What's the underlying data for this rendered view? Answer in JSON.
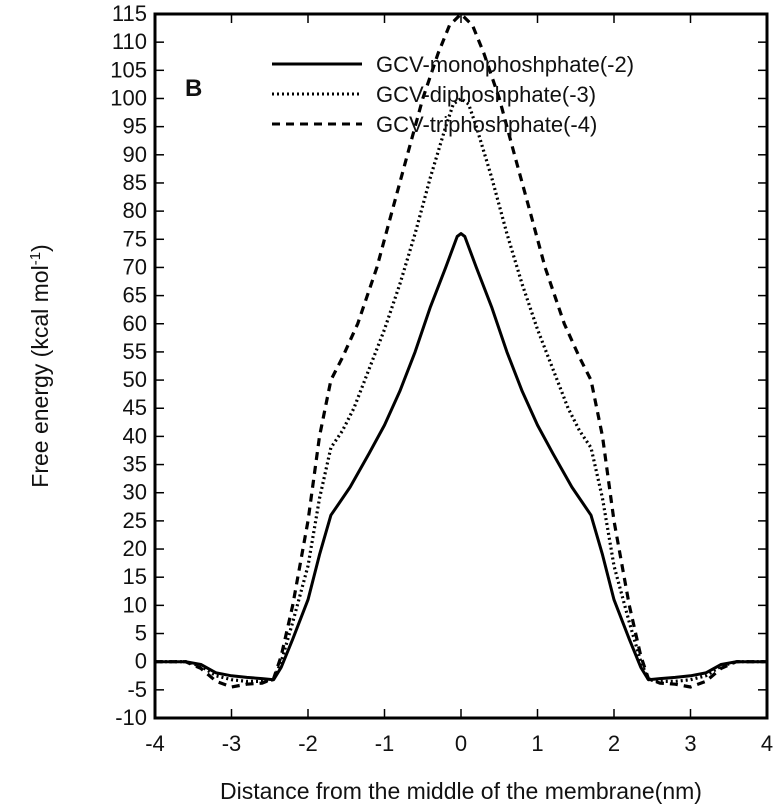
{
  "chart_data": {
    "type": "line",
    "panel_label": "B",
    "xlabel": "Distance from the middle of the membrane(nm)",
    "ylabel_main": "Free energy  (kcal mol",
    "ylabel_sup": "-1",
    "ylabel_end": ")",
    "xlim": [
      -4,
      4
    ],
    "ylim": [
      -10,
      115
    ],
    "xticks": [
      -4,
      -3,
      -2,
      -1,
      0,
      1,
      2,
      3,
      4
    ],
    "yticks": [
      -10,
      -5,
      0,
      5,
      10,
      15,
      20,
      25,
      30,
      35,
      40,
      45,
      50,
      55,
      60,
      65,
      70,
      75,
      80,
      85,
      90,
      95,
      100,
      105,
      110,
      115
    ],
    "grid": false,
    "legend_position": "top-right",
    "series": [
      {
        "name": "GCV-monophoshphate(-2)",
        "style": "solid",
        "color": "#000000",
        "x": [
          -4.0,
          -3.6,
          -3.4,
          -3.2,
          -3.0,
          -2.8,
          -2.6,
          -2.45,
          -2.35,
          -2.2,
          -2.0,
          -1.85,
          -1.7,
          -1.6,
          -1.45,
          -1.2,
          -1.0,
          -0.8,
          -0.6,
          -0.4,
          -0.2,
          -0.05,
          0.0,
          0.05,
          0.2,
          0.4,
          0.6,
          0.8,
          1.0,
          1.2,
          1.45,
          1.6,
          1.7,
          1.85,
          2.0,
          2.2,
          2.35,
          2.45,
          2.6,
          2.8,
          3.0,
          3.2,
          3.4,
          3.6,
          4.0
        ],
        "y": [
          0.0,
          0.0,
          -0.5,
          -2.0,
          -2.5,
          -2.8,
          -3.0,
          -3.2,
          -1.0,
          4.0,
          11.0,
          19.0,
          26.0,
          28.0,
          31.0,
          37.0,
          42.0,
          48.0,
          55.0,
          63.0,
          70.0,
          75.5,
          76.0,
          75.5,
          70.0,
          63.0,
          55.0,
          48.0,
          42.0,
          37.0,
          31.0,
          28.0,
          26.0,
          19.0,
          11.0,
          4.0,
          -1.0,
          -3.2,
          -3.0,
          -2.8,
          -2.5,
          -2.0,
          -0.5,
          0.0,
          0.0
        ]
      },
      {
        "name": "GCV-diphoshphate(-3)",
        "style": "dotted",
        "color": "#000000",
        "x": [
          -4.0,
          -3.6,
          -3.4,
          -3.2,
          -3.0,
          -2.8,
          -2.6,
          -2.45,
          -2.35,
          -2.2,
          -2.0,
          -1.85,
          -1.7,
          -1.55,
          -1.4,
          -1.2,
          -1.0,
          -0.8,
          -0.6,
          -0.4,
          -0.2,
          -0.1,
          0.0,
          0.1,
          0.2,
          0.4,
          0.6,
          0.8,
          1.0,
          1.2,
          1.4,
          1.55,
          1.7,
          1.85,
          2.0,
          2.2,
          2.35,
          2.45,
          2.6,
          2.8,
          3.0,
          3.2,
          3.4,
          3.6,
          4.0
        ],
        "y": [
          0.0,
          0.0,
          -0.8,
          -2.5,
          -3.2,
          -3.5,
          -3.5,
          -3.2,
          0.0,
          7.0,
          17.0,
          29.0,
          38.0,
          41.0,
          45.0,
          52.0,
          59.0,
          67.0,
          76.0,
          86.0,
          95.0,
          99.0,
          100.0,
          99.0,
          95.0,
          86.0,
          76.0,
          67.0,
          59.0,
          52.0,
          45.0,
          41.0,
          38.0,
          29.0,
          17.0,
          7.0,
          0.0,
          -3.2,
          -3.5,
          -3.5,
          -3.2,
          -2.5,
          -0.8,
          0.0,
          0.0
        ]
      },
      {
        "name": "GCV-triphoshphate(-4)",
        "style": "dashed",
        "color": "#000000",
        "x": [
          -4.0,
          -3.6,
          -3.4,
          -3.2,
          -3.0,
          -2.8,
          -2.6,
          -2.45,
          -2.35,
          -2.2,
          -2.0,
          -1.85,
          -1.7,
          -1.55,
          -1.35,
          -1.1,
          -0.9,
          -0.7,
          -0.5,
          -0.3,
          -0.15,
          0.0,
          0.15,
          0.3,
          0.5,
          0.7,
          0.9,
          1.1,
          1.35,
          1.55,
          1.7,
          1.85,
          2.0,
          2.2,
          2.35,
          2.45,
          2.6,
          2.8,
          3.0,
          3.2,
          3.4,
          3.6,
          4.0
        ],
        "y": [
          0.0,
          0.0,
          -1.2,
          -3.5,
          -4.5,
          -4.0,
          -3.8,
          -3.0,
          1.0,
          10.0,
          25.0,
          40.0,
          50.0,
          54.0,
          60.0,
          70.0,
          80.0,
          90.0,
          100.0,
          108.0,
          113.0,
          115.0,
          113.0,
          108.0,
          100.0,
          90.0,
          80.0,
          70.0,
          60.0,
          54.0,
          50.0,
          40.0,
          25.0,
          10.0,
          1.0,
          -3.0,
          -3.8,
          -4.0,
          -4.5,
          -3.5,
          -1.2,
          0.0,
          0.0
        ]
      }
    ]
  }
}
